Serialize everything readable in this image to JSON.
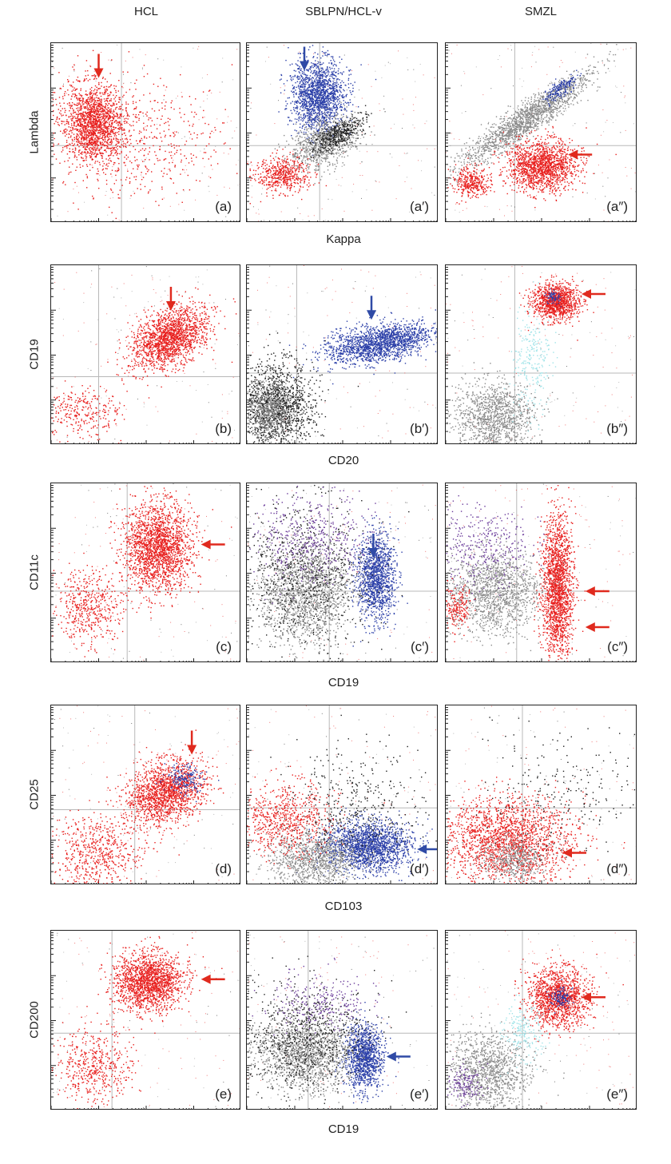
{
  "colors": {
    "red": "#e8201e",
    "blue": "#2b3fa8",
    "gray": "#8a8a8a",
    "black": "#202020",
    "cyan": "#9fe3e8",
    "purple": "#6a3a9a",
    "arrow_red": "#e02a1e",
    "arrow_blue": "#2f4aa6",
    "quadrant_line": "#b8b8b8"
  },
  "columns": [
    "HCL",
    "SBLPN/HCL-v",
    "SMZL"
  ],
  "chart_data": [
    {
      "type": "scatter",
      "row": 0,
      "xlabel": "Kappa",
      "ylabel": "Lambda",
      "panels": [
        {
          "label": "(a)",
          "clusters": [
            {
              "color": "red",
              "cx": 0.22,
              "cy": 0.44,
              "sx": 0.08,
              "sy": 0.11,
              "n": 1700
            },
            {
              "color": "red",
              "cx": 0.45,
              "cy": 0.55,
              "sx": 0.22,
              "sy": 0.17,
              "n": 500
            }
          ],
          "arrows": [
            {
              "color": "arrow_red",
              "dir": "down",
              "x": 0.25,
              "y": 0.06
            }
          ]
        },
        {
          "label": "(a′)",
          "clusters": [
            {
              "color": "blue",
              "cx": 0.37,
              "cy": 0.29,
              "sx": 0.07,
              "sy": 0.1,
              "n": 1600
            },
            {
              "color": "gray",
              "cx": 0.4,
              "cy": 0.55,
              "sx": 0.1,
              "sy": 0.06,
              "n": 900,
              "angle": -30
            },
            {
              "color": "black",
              "cx": 0.48,
              "cy": 0.5,
              "sx": 0.08,
              "sy": 0.03,
              "n": 400,
              "angle": -30
            },
            {
              "color": "red",
              "cx": 0.18,
              "cy": 0.73,
              "sx": 0.07,
              "sy": 0.05,
              "n": 500
            }
          ],
          "arrows": [
            {
              "color": "arrow_blue",
              "dir": "down",
              "x": 0.3,
              "y": 0.02
            }
          ]
        },
        {
          "label": "(a″)",
          "clusters": [
            {
              "color": "gray",
              "cx": 0.42,
              "cy": 0.42,
              "sx": 0.2,
              "sy": 0.04,
              "n": 1600,
              "angle": -35
            },
            {
              "color": "blue",
              "cx": 0.6,
              "cy": 0.25,
              "sx": 0.05,
              "sy": 0.02,
              "n": 180,
              "angle": -35
            },
            {
              "color": "red",
              "cx": 0.5,
              "cy": 0.68,
              "sx": 0.09,
              "sy": 0.07,
              "n": 1500
            },
            {
              "color": "red",
              "cx": 0.13,
              "cy": 0.77,
              "sx": 0.05,
              "sy": 0.04,
              "n": 350
            }
          ],
          "arrows": [
            {
              "color": "arrow_red",
              "dir": "left",
              "x": 0.63,
              "y": 0.62
            }
          ]
        }
      ]
    },
    {
      "type": "scatter",
      "row": 1,
      "xlabel": "CD20",
      "ylabel": "CD19",
      "panels": [
        {
          "label": "(b)",
          "clusters": [
            {
              "color": "red",
              "cx": 0.62,
              "cy": 0.4,
              "sx": 0.11,
              "sy": 0.07,
              "n": 1700,
              "angle": -32
            },
            {
              "color": "red",
              "cx": 0.16,
              "cy": 0.82,
              "sx": 0.1,
              "sy": 0.07,
              "n": 300
            }
          ],
          "arrows": [
            {
              "color": "arrow_red",
              "dir": "down",
              "x": 0.63,
              "y": 0.12
            }
          ]
        },
        {
          "label": "(b′)",
          "clusters": [
            {
              "color": "blue",
              "cx": 0.69,
              "cy": 0.43,
              "sx": 0.14,
              "sy": 0.05,
              "n": 1700,
              "angle": -10
            },
            {
              "color": "black",
              "cx": 0.15,
              "cy": 0.78,
              "sx": 0.1,
              "sy": 0.12,
              "n": 1400
            },
            {
              "color": "gray",
              "cx": 0.12,
              "cy": 0.8,
              "sx": 0.06,
              "sy": 0.08,
              "n": 600
            }
          ],
          "arrows": [
            {
              "color": "arrow_blue",
              "dir": "down",
              "x": 0.65,
              "y": 0.17
            }
          ]
        },
        {
          "label": "(b″)",
          "clusters": [
            {
              "color": "red",
              "cx": 0.57,
              "cy": 0.2,
              "sx": 0.06,
              "sy": 0.05,
              "n": 1100
            },
            {
              "color": "blue",
              "cx": 0.56,
              "cy": 0.18,
              "sx": 0.02,
              "sy": 0.02,
              "n": 70
            },
            {
              "color": "gray",
              "cx": 0.25,
              "cy": 0.84,
              "sx": 0.1,
              "sy": 0.1,
              "n": 1200
            },
            {
              "color": "cyan",
              "cx": 0.45,
              "cy": 0.55,
              "sx": 0.05,
              "sy": 0.15,
              "n": 250
            }
          ],
          "arrows": [
            {
              "color": "arrow_red",
              "dir": "left",
              "x": 0.7,
              "y": 0.16
            }
          ]
        }
      ]
    },
    {
      "type": "scatter",
      "row": 2,
      "xlabel": "CD19",
      "ylabel": "CD11c",
      "panels": [
        {
          "label": "(c)",
          "clusters": [
            {
              "color": "red",
              "cx": 0.56,
              "cy": 0.35,
              "sx": 0.09,
              "sy": 0.12,
              "n": 2000
            },
            {
              "color": "red",
              "cx": 0.2,
              "cy": 0.68,
              "sx": 0.09,
              "sy": 0.1,
              "n": 500
            }
          ],
          "arrows": [
            {
              "color": "arrow_red",
              "dir": "left",
              "x": 0.78,
              "y": 0.34
            }
          ]
        },
        {
          "label": "(c′)",
          "clusters": [
            {
              "color": "blue",
              "cx": 0.67,
              "cy": 0.52,
              "sx": 0.05,
              "sy": 0.12,
              "n": 1300
            },
            {
              "color": "gray",
              "cx": 0.3,
              "cy": 0.6,
              "sx": 0.12,
              "sy": 0.14,
              "n": 1600
            },
            {
              "color": "black",
              "cx": 0.3,
              "cy": 0.5,
              "sx": 0.17,
              "sy": 0.2,
              "n": 800
            },
            {
              "color": "purple",
              "cx": 0.33,
              "cy": 0.3,
              "sx": 0.16,
              "sy": 0.12,
              "n": 450
            }
          ],
          "arrows": [
            {
              "color": "arrow_blue",
              "dir": "down",
              "x": 0.66,
              "y": 0.28
            }
          ]
        },
        {
          "label": "(c″)",
          "clusters": [
            {
              "color": "red",
              "cx": 0.58,
              "cy": 0.58,
              "sx": 0.04,
              "sy": 0.2,
              "n": 1900
            },
            {
              "color": "gray",
              "cx": 0.25,
              "cy": 0.6,
              "sx": 0.12,
              "sy": 0.12,
              "n": 1400
            },
            {
              "color": "purple",
              "cx": 0.2,
              "cy": 0.35,
              "sx": 0.12,
              "sy": 0.12,
              "n": 350
            },
            {
              "color": "red",
              "cx": 0.06,
              "cy": 0.68,
              "sx": 0.04,
              "sy": 0.06,
              "n": 200
            }
          ],
          "arrows": [
            {
              "color": "arrow_red",
              "dir": "left",
              "x": 0.72,
              "y": 0.6
            },
            {
              "color": "arrow_red",
              "dir": "left",
              "x": 0.72,
              "y": 0.8
            }
          ]
        }
      ]
    },
    {
      "type": "scatter",
      "row": 3,
      "xlabel": "CD103",
      "ylabel": "CD25",
      "panels": [
        {
          "label": "(d)",
          "clusters": [
            {
              "color": "red",
              "cx": 0.6,
              "cy": 0.48,
              "sx": 0.11,
              "sy": 0.08,
              "n": 1600,
              "angle": -25
            },
            {
              "color": "blue",
              "cx": 0.7,
              "cy": 0.4,
              "sx": 0.05,
              "sy": 0.04,
              "n": 180
            },
            {
              "color": "red",
              "cx": 0.24,
              "cy": 0.82,
              "sx": 0.12,
              "sy": 0.1,
              "n": 600
            }
          ],
          "arrows": [
            {
              "color": "arrow_red",
              "dir": "down",
              "x": 0.74,
              "y": 0.14
            }
          ]
        },
        {
          "label": "(d′)",
          "clusters": [
            {
              "color": "blue",
              "cx": 0.63,
              "cy": 0.78,
              "sx": 0.11,
              "sy": 0.07,
              "n": 1800
            },
            {
              "color": "gray",
              "cx": 0.35,
              "cy": 0.85,
              "sx": 0.12,
              "sy": 0.08,
              "n": 1100
            },
            {
              "color": "red",
              "cx": 0.2,
              "cy": 0.63,
              "sx": 0.12,
              "sy": 0.1,
              "n": 700
            },
            {
              "color": "black",
              "cx": 0.55,
              "cy": 0.55,
              "sx": 0.18,
              "sy": 0.15,
              "n": 400
            }
          ],
          "arrows": [
            {
              "color": "arrow_blue",
              "dir": "left",
              "x": 0.88,
              "y": 0.8
            }
          ]
        },
        {
          "label": "(d″)",
          "clusters": [
            {
              "color": "red",
              "cx": 0.32,
              "cy": 0.75,
              "sx": 0.17,
              "sy": 0.12,
              "n": 2000
            },
            {
              "color": "gray",
              "cx": 0.35,
              "cy": 0.85,
              "sx": 0.08,
              "sy": 0.06,
              "n": 450
            },
            {
              "color": "black",
              "cx": 0.6,
              "cy": 0.5,
              "sx": 0.22,
              "sy": 0.2,
              "n": 250
            }
          ],
          "arrows": [
            {
              "color": "arrow_red",
              "dir": "left",
              "x": 0.6,
              "y": 0.82
            }
          ]
        }
      ]
    },
    {
      "type": "scatter",
      "row": 4,
      "xlabel": "CD19",
      "ylabel": "CD200",
      "panels": [
        {
          "label": "(e)",
          "clusters": [
            {
              "color": "red",
              "cx": 0.51,
              "cy": 0.28,
              "sx": 0.09,
              "sy": 0.08,
              "n": 1700
            },
            {
              "color": "red",
              "cx": 0.22,
              "cy": 0.75,
              "sx": 0.1,
              "sy": 0.1,
              "n": 500
            }
          ],
          "arrows": [
            {
              "color": "arrow_red",
              "dir": "left",
              "x": 0.78,
              "y": 0.27
            }
          ]
        },
        {
          "label": "(e′)",
          "clusters": [
            {
              "color": "blue",
              "cx": 0.61,
              "cy": 0.7,
              "sx": 0.05,
              "sy": 0.09,
              "n": 1200
            },
            {
              "color": "gray",
              "cx": 0.3,
              "cy": 0.68,
              "sx": 0.12,
              "sy": 0.1,
              "n": 1400
            },
            {
              "color": "black",
              "cx": 0.3,
              "cy": 0.6,
              "sx": 0.16,
              "sy": 0.15,
              "n": 800
            },
            {
              "color": "purple",
              "cx": 0.38,
              "cy": 0.4,
              "sx": 0.12,
              "sy": 0.08,
              "n": 250
            }
          ],
          "arrows": [
            {
              "color": "arrow_blue",
              "dir": "left",
              "x": 0.72,
              "y": 0.7
            }
          ]
        },
        {
          "label": "(e″)",
          "clusters": [
            {
              "color": "red",
              "cx": 0.58,
              "cy": 0.37,
              "sx": 0.08,
              "sy": 0.08,
              "n": 1400
            },
            {
              "color": "blue",
              "cx": 0.6,
              "cy": 0.37,
              "sx": 0.03,
              "sy": 0.03,
              "n": 120
            },
            {
              "color": "gray",
              "cx": 0.22,
              "cy": 0.78,
              "sx": 0.11,
              "sy": 0.11,
              "n": 1200
            },
            {
              "color": "cyan",
              "cx": 0.4,
              "cy": 0.55,
              "sx": 0.05,
              "sy": 0.08,
              "n": 200
            },
            {
              "color": "purple",
              "cx": 0.1,
              "cy": 0.85,
              "sx": 0.05,
              "sy": 0.05,
              "n": 150
            }
          ],
          "arrows": [
            {
              "color": "arrow_red",
              "dir": "left",
              "x": 0.7,
              "y": 0.37
            }
          ]
        }
      ]
    }
  ]
}
